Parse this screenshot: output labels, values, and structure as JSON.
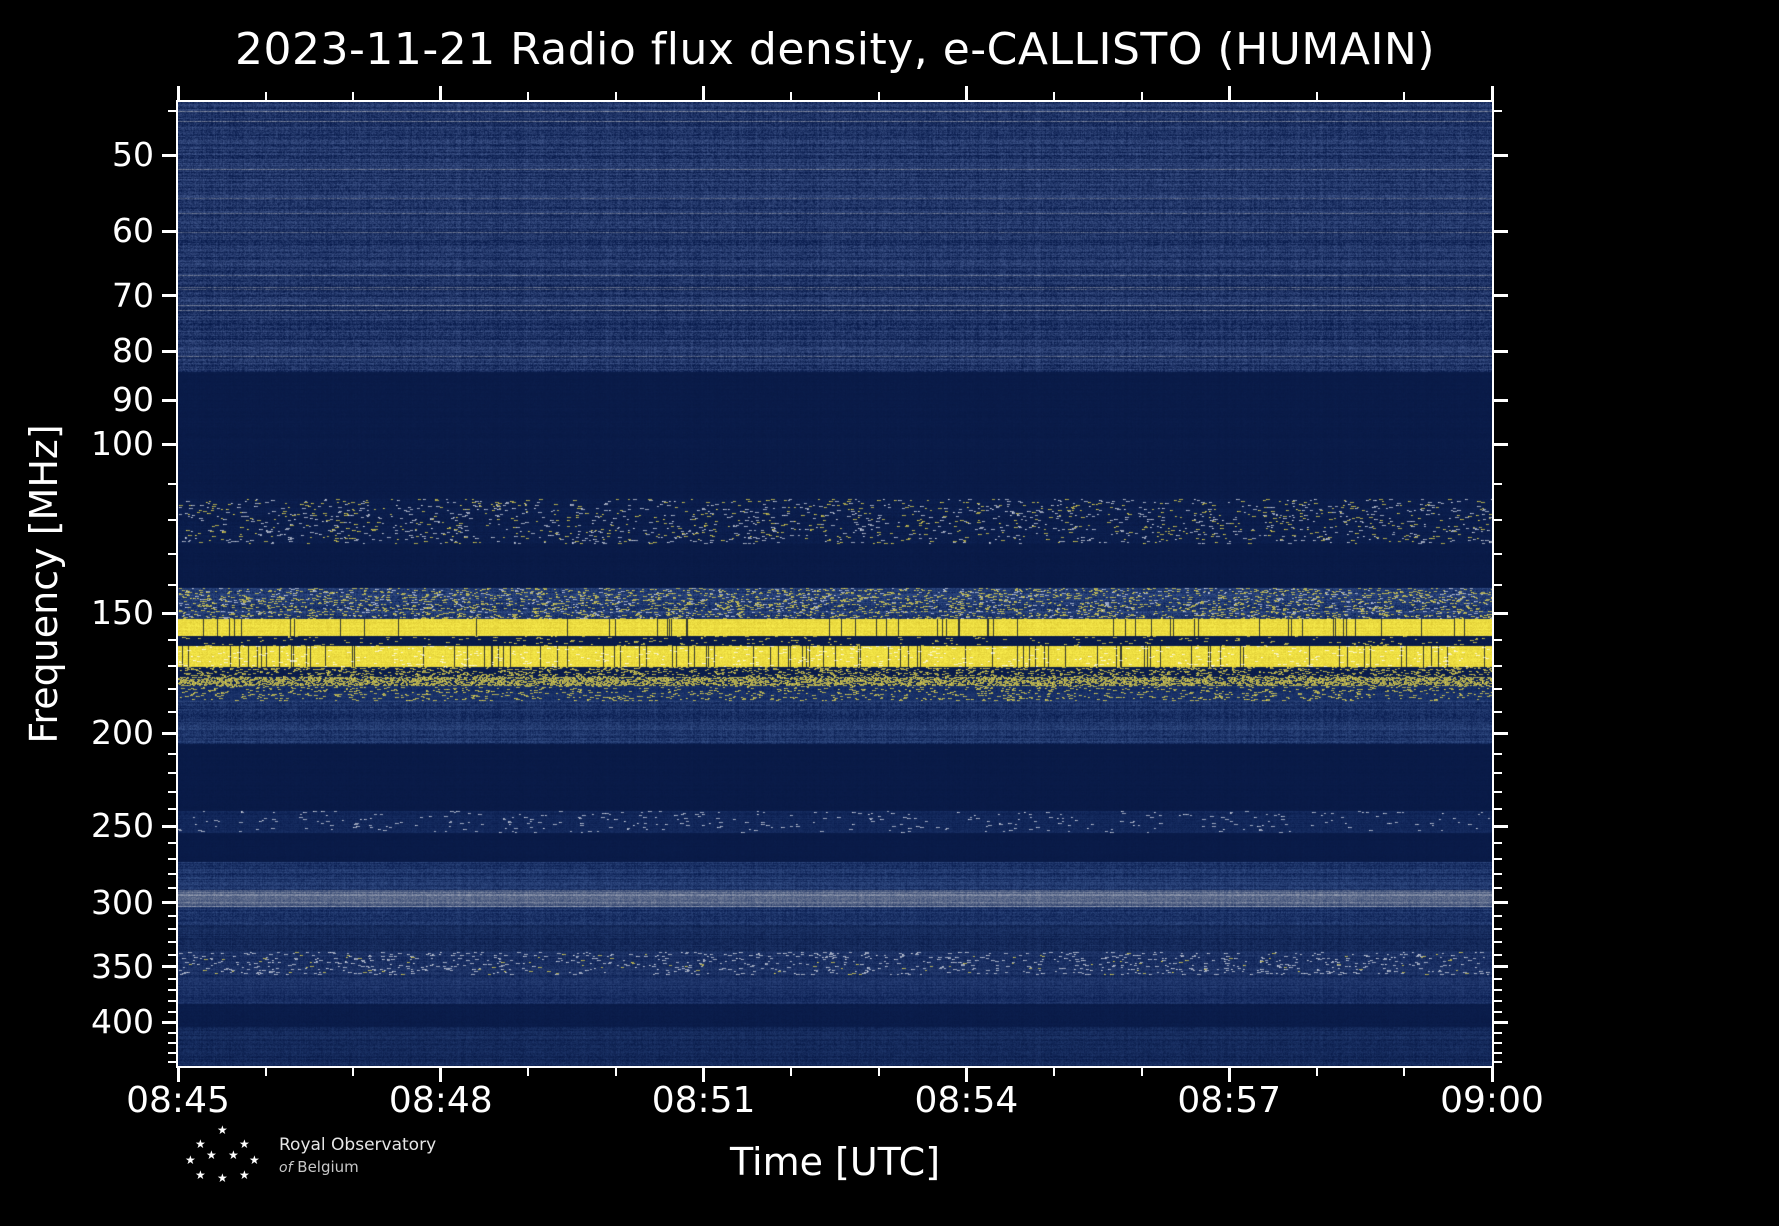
{
  "title": "2023-11-21 Radio flux density, e-CALLISTO (HUMAIN)",
  "colors": {
    "bg": "#000000",
    "fg": "#ffffff"
  },
  "x_axis": {
    "label": "Time [UTC]",
    "span_min": 15,
    "ticks": [
      {
        "label": "08:45",
        "min": 0
      },
      {
        "label": "08:48",
        "min": 3
      },
      {
        "label": "08:51",
        "min": 6
      },
      {
        "label": "08:54",
        "min": 9
      },
      {
        "label": "08:57",
        "min": 12
      },
      {
        "label": "09:00",
        "min": 15
      }
    ],
    "minor_min": [
      1,
      2,
      4,
      5,
      7,
      8,
      10,
      11,
      13,
      14
    ]
  },
  "y_axis": {
    "label": "Frequency [MHz]",
    "scale": "log",
    "inverted": true,
    "range_mhz": [
      44,
      444
    ],
    "ticks": [
      50,
      60,
      70,
      80,
      90,
      100,
      150,
      200,
      250,
      300,
      350,
      400
    ],
    "minor_ticks": [
      45,
      110,
      120,
      130,
      140,
      160,
      170,
      180,
      190,
      210,
      220,
      230,
      240,
      260,
      270,
      280,
      290,
      310,
      320,
      330,
      340,
      360,
      370,
      380,
      390,
      410,
      420,
      430,
      440
    ]
  },
  "logo": {
    "line1": "Royal Observatory",
    "line2_italic": "of",
    "line2_rest": "Belgium",
    "star_glyph": "★"
  },
  "chart_data": {
    "type": "heatmap",
    "subtype": "radio-spectrogram",
    "title": "2023-11-21 Radio flux density, e-CALLISTO (HUMAIN)",
    "xlabel": "Time [UTC]",
    "ylabel": "Frequency [MHz]",
    "x_range": [
      "08:45",
      "09:00"
    ],
    "x_tick_labels": [
      "08:45",
      "08:48",
      "08:51",
      "08:54",
      "08:57",
      "09:00"
    ],
    "y_tick_labels": [
      50,
      60,
      70,
      80,
      90,
      100,
      150,
      200,
      250,
      300,
      350,
      400
    ],
    "y_range_mhz": [
      44,
      444
    ],
    "y_scale": "log-inverted",
    "legend": "none",
    "bands": [
      {
        "f": [
          44,
          84
        ],
        "kind": "noise",
        "level": 0.34,
        "rowVar": 0.45,
        "colVar": 0.18,
        "pixVar": 0.28,
        "c0": "#081b4c",
        "c1": "#52699f",
        "grayP": 0.05,
        "grayC": "#9aa1b2"
      },
      {
        "f": [
          84,
          114
        ],
        "kind": "dark",
        "level": 0.22,
        "rowVar": 0.1,
        "colVar": 0.06,
        "pixVar": 0.1,
        "c0": "#071742",
        "c1": "#12295e"
      },
      {
        "f": [
          114,
          127
        ],
        "kind": "speckle",
        "level": 0.24,
        "rowVar": 0.15,
        "colVar": 0.08,
        "pixVar": 0.14,
        "c0": "#071742",
        "c1": "#16306a",
        "speckles": [
          {
            "c": "#dde1ea",
            "p": 0.018
          },
          {
            "c": "#f6e54e",
            "p": 0.012
          }
        ]
      },
      {
        "f": [
          127,
          141
        ],
        "kind": "dark",
        "level": 0.2,
        "rowVar": 0.08,
        "colVar": 0.06,
        "pixVar": 0.1,
        "c0": "#071742",
        "c1": "#12295e"
      },
      {
        "f": [
          141,
          152
        ],
        "kind": "speckle",
        "level": 0.34,
        "rowVar": 0.3,
        "colVar": 0.15,
        "pixVar": 0.25,
        "c0": "#0a2157",
        "c1": "#4d6aa4",
        "speckles": [
          {
            "c": "#f6e54e",
            "p": 0.06
          },
          {
            "c": "#dde1ea",
            "p": 0.02
          }
        ]
      },
      {
        "f": [
          152,
          158.5
        ],
        "kind": "bright",
        "level": 0.8,
        "rowVar": 0.15,
        "colVar": 0.1,
        "pixVar": 0.2,
        "c0": "#b89c12",
        "c1": "#f9ec4c",
        "gapP": 0.05
      },
      {
        "f": [
          158.5,
          162
        ],
        "kind": "speckle",
        "level": 0.2,
        "rowVar": 0.1,
        "colVar": 0.06,
        "pixVar": 0.12,
        "c0": "#071742",
        "c1": "#142c62",
        "speckles": [
          {
            "c": "#f6e54e",
            "p": 0.02
          }
        ]
      },
      {
        "f": [
          162,
          170.5
        ],
        "kind": "bright",
        "level": 0.82,
        "rowVar": 0.15,
        "colVar": 0.1,
        "pixVar": 0.2,
        "c0": "#b89c12",
        "c1": "#f9ec4c",
        "gapP": 0.07,
        "speckles": [
          {
            "c": "#ffffff",
            "p": 0.02
          }
        ]
      },
      {
        "f": [
          170.5,
          174.5
        ],
        "kind": "speckle",
        "level": 0.22,
        "rowVar": 0.12,
        "colVar": 0.08,
        "pixVar": 0.12,
        "c0": "#071742",
        "c1": "#16306a",
        "speckles": [
          {
            "c": "#f6e54e",
            "p": 0.1
          }
        ]
      },
      {
        "f": [
          174.5,
          178.5
        ],
        "kind": "dotline",
        "level": 0.26,
        "rowVar": 0.12,
        "colVar": 0.1,
        "pixVar": 0.15,
        "c0": "#081b4c",
        "c1": "#1a3570",
        "speckles": [
          {
            "c": "#f6e54e",
            "p": 0.4
          }
        ]
      },
      {
        "f": [
          178.5,
          185
        ],
        "kind": "speckle",
        "level": 0.3,
        "rowVar": 0.25,
        "colVar": 0.12,
        "pixVar": 0.2,
        "c0": "#0a2157",
        "c1": "#3a548c",
        "speckles": [
          {
            "c": "#f6e54e",
            "p": 0.05
          }
        ]
      },
      {
        "f": [
          185,
          205
        ],
        "kind": "noise",
        "level": 0.34,
        "rowVar": 0.4,
        "colVar": 0.18,
        "pixVar": 0.26,
        "c0": "#091d50",
        "c1": "#46639c"
      },
      {
        "f": [
          205,
          241
        ],
        "kind": "dark",
        "level": 0.2,
        "rowVar": 0.08,
        "colVar": 0.05,
        "pixVar": 0.09,
        "c0": "#071742",
        "c1": "#12295e"
      },
      {
        "f": [
          241,
          254
        ],
        "kind": "speckle",
        "level": 0.27,
        "rowVar": 0.2,
        "colVar": 0.1,
        "pixVar": 0.16,
        "c0": "#081b4c",
        "c1": "#2c4780",
        "speckles": [
          {
            "c": "#dde1ea",
            "p": 0.012
          }
        ]
      },
      {
        "f": [
          254,
          272
        ],
        "kind": "dark",
        "level": 0.21,
        "rowVar": 0.08,
        "colVar": 0.05,
        "pixVar": 0.09,
        "c0": "#071742",
        "c1": "#12295e"
      },
      {
        "f": [
          272,
          291
        ],
        "kind": "noise",
        "level": 0.33,
        "rowVar": 0.38,
        "colVar": 0.16,
        "pixVar": 0.24,
        "c0": "#091d50",
        "c1": "#44619a"
      },
      {
        "f": [
          291,
          303
        ],
        "kind": "grayline",
        "level": 0.48,
        "rowVar": 0.3,
        "colVar": 0.14,
        "pixVar": 0.2,
        "c0": "#10275c",
        "c1": "#8f97a9",
        "grayP": 0.25,
        "grayC": "#a8aebc"
      },
      {
        "f": [
          303,
          317
        ],
        "kind": "noise",
        "level": 0.33,
        "rowVar": 0.36,
        "colVar": 0.16,
        "pixVar": 0.24,
        "c0": "#091d50",
        "c1": "#44619a"
      },
      {
        "f": [
          317,
          338
        ],
        "kind": "noise",
        "level": 0.28,
        "rowVar": 0.3,
        "colVar": 0.14,
        "pixVar": 0.2,
        "c0": "#081a48",
        "c1": "#35518a"
      },
      {
        "f": [
          338,
          357
        ],
        "kind": "speckle",
        "level": 0.31,
        "rowVar": 0.3,
        "colVar": 0.15,
        "pixVar": 0.22,
        "c0": "#091d50",
        "c1": "#40598f",
        "speckles": [
          {
            "c": "#dde1ea",
            "p": 0.03
          },
          {
            "c": "#f6e54e",
            "p": 0.004
          }
        ]
      },
      {
        "f": [
          357,
          383
        ],
        "kind": "noise",
        "level": 0.3,
        "rowVar": 0.32,
        "colVar": 0.15,
        "pixVar": 0.22,
        "c0": "#091d50",
        "c1": "#3d5790"
      },
      {
        "f": [
          383,
          404
        ],
        "kind": "dark",
        "level": 0.23,
        "rowVar": 0.12,
        "colVar": 0.07,
        "pixVar": 0.12,
        "c0": "#071742",
        "c1": "#142c62"
      },
      {
        "f": [
          404,
          444
        ],
        "kind": "noise",
        "level": 0.28,
        "rowVar": 0.28,
        "colVar": 0.13,
        "pixVar": 0.2,
        "c0": "#081a48",
        "c1": "#33508a"
      }
    ]
  }
}
